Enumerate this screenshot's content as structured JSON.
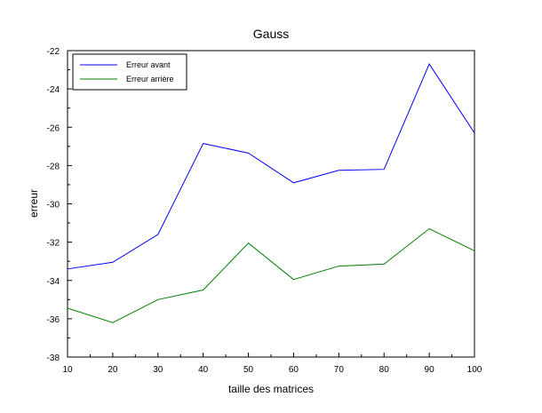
{
  "chart_data": {
    "type": "line",
    "title": "Gauss",
    "xlabel": "taille des matrices",
    "ylabel": "erreur",
    "xlim": [
      10,
      100
    ],
    "ylim": [
      -38,
      -22
    ],
    "x_ticks": [
      10,
      20,
      30,
      40,
      50,
      60,
      70,
      80,
      90,
      100
    ],
    "y_ticks": [
      -38,
      -36,
      -34,
      -32,
      -30,
      -28,
      -26,
      -24,
      -22
    ],
    "grid": false,
    "legend_position": "top-left",
    "x": [
      10,
      20,
      30,
      40,
      50,
      60,
      70,
      80,
      90,
      100
    ],
    "series": [
      {
        "name": "Erreur avant",
        "color": "#0000ff",
        "values": [
          -33.4,
          -33.05,
          -31.6,
          -26.85,
          -27.35,
          -28.9,
          -28.25,
          -28.2,
          -22.7,
          -26.3
        ]
      },
      {
        "name": "Erreur arrière",
        "color": "#007f00",
        "values": [
          -35.45,
          -36.2,
          -35.0,
          -34.5,
          -32.05,
          -33.95,
          -33.25,
          -33.15,
          -31.3,
          -32.45
        ]
      }
    ]
  }
}
